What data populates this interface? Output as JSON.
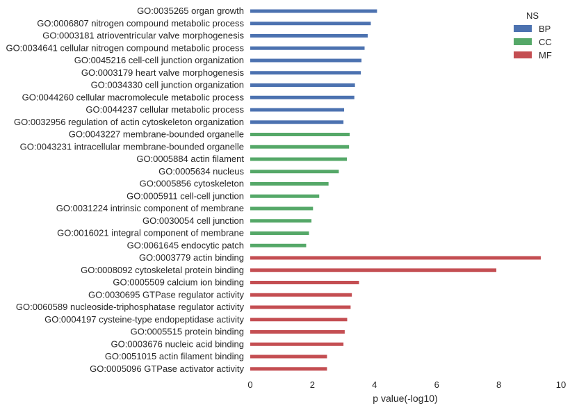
{
  "chart_data": {
    "type": "bar",
    "orientation": "horizontal",
    "xlabel": "p value(-log10)",
    "ylabel": "",
    "xlim": [
      0,
      10
    ],
    "xticks": [
      "0",
      "2",
      "4",
      "6",
      "8",
      "10"
    ],
    "grid": false,
    "legend": {
      "title": "NS",
      "placement": "top-right",
      "entries": [
        {
          "label": "BP",
          "color": "#4c72b0"
        },
        {
          "label": "CC",
          "color": "#55a868"
        },
        {
          "label": "MF",
          "color": "#c44e52"
        }
      ]
    },
    "bars": [
      {
        "category": "GO:0035265 organ growth",
        "ns": "BP",
        "value": 4.08
      },
      {
        "category": "GO:0006807 nitrogen compound metabolic process",
        "ns": "BP",
        "value": 3.88
      },
      {
        "category": "GO:0003181 atrioventricular valve morphogenesis",
        "ns": "BP",
        "value": 3.78
      },
      {
        "category": "GO:0034641 cellular nitrogen compound metabolic process",
        "ns": "BP",
        "value": 3.68
      },
      {
        "category": "GO:0045216 cell-cell junction organization",
        "ns": "BP",
        "value": 3.58
      },
      {
        "category": "GO:0003179 heart valve morphogenesis",
        "ns": "BP",
        "value": 3.56
      },
      {
        "category": "GO:0034330 cell junction organization",
        "ns": "BP",
        "value": 3.37
      },
      {
        "category": "GO:0044260 cellular macromolecule metabolic process",
        "ns": "BP",
        "value": 3.35
      },
      {
        "category": "GO:0044237 cellular metabolic process",
        "ns": "BP",
        "value": 3.02
      },
      {
        "category": "GO:0032956 regulation of actin cytoskeleton organization",
        "ns": "BP",
        "value": 3.0
      },
      {
        "category": "GO:0043227 membrane-bounded organelle",
        "ns": "CC",
        "value": 3.2
      },
      {
        "category": "GO:0043231 intracellular membrane-bounded organelle",
        "ns": "CC",
        "value": 3.18
      },
      {
        "category": "GO:0005884 actin filament",
        "ns": "CC",
        "value": 3.11
      },
      {
        "category": "GO:0005634 nucleus",
        "ns": "CC",
        "value": 2.85
      },
      {
        "category": "GO:0005856 cytoskeleton",
        "ns": "CC",
        "value": 2.52
      },
      {
        "category": "GO:0005911 cell-cell junction",
        "ns": "CC",
        "value": 2.22
      },
      {
        "category": "GO:0031224 intrinsic component of membrane",
        "ns": "CC",
        "value": 2.02
      },
      {
        "category": "GO:0030054 cell junction",
        "ns": "CC",
        "value": 1.97
      },
      {
        "category": "GO:0016021 integral component of membrane",
        "ns": "CC",
        "value": 1.89
      },
      {
        "category": "GO:0061645 endocytic patch",
        "ns": "CC",
        "value": 1.8
      },
      {
        "category": "GO:0003779 actin binding",
        "ns": "MF",
        "value": 9.35
      },
      {
        "category": "GO:0008092 cytoskeletal protein binding",
        "ns": "MF",
        "value": 7.92
      },
      {
        "category": "GO:0005509 calcium ion binding",
        "ns": "MF",
        "value": 3.5
      },
      {
        "category": "GO:0030695 GTPase regulator activity",
        "ns": "MF",
        "value": 3.27
      },
      {
        "category": "GO:0060589 nucleoside-triphosphatase regulator activity",
        "ns": "MF",
        "value": 3.23
      },
      {
        "category": "GO:0004197 cysteine-type endopeptidase activity",
        "ns": "MF",
        "value": 3.12
      },
      {
        "category": "GO:0005515 protein binding",
        "ns": "MF",
        "value": 3.04
      },
      {
        "category": "GO:0003676 nucleic acid binding",
        "ns": "MF",
        "value": 3.0
      },
      {
        "category": "GO:0051015 actin filament binding",
        "ns": "MF",
        "value": 2.47
      },
      {
        "category": "GO:0005096 GTPase activator activity",
        "ns": "MF",
        "value": 2.47
      }
    ]
  }
}
